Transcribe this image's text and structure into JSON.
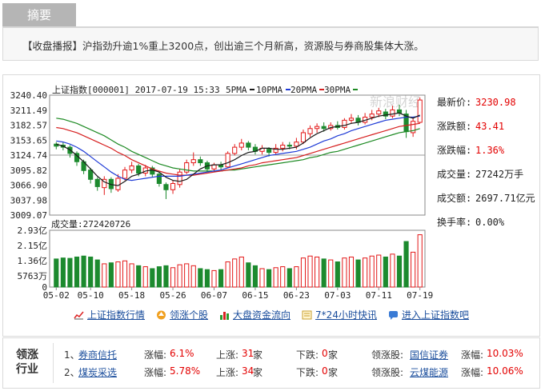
{
  "tab": {
    "label": "摘要"
  },
  "summary": {
    "text": "【收盘播报】沪指劲升逾1%重上3200点，创出逾三个月新高，资源股与券商股集体大涨。"
  },
  "chart_header": {
    "title": "上证指数[000001] 2017-07-19 15:33",
    "ma5": "5PMA",
    "ma10": "10PMA",
    "ma20": "20PMA",
    "ma30": "30PMA"
  },
  "colors": {
    "up": "#e31919",
    "down": "#1c8a2e",
    "ma5": "#1a1a1a",
    "ma10": "#1f3bd6",
    "ma20": "#d61f1f",
    "ma30": "#1d8a23"
  },
  "watermark": "新浪财经",
  "stats": [
    {
      "label": "最新价:",
      "value": "3230.98",
      "color": "red"
    },
    {
      "label": "涨跌额:",
      "value": "43.41",
      "color": "red"
    },
    {
      "label": "涨跌幅:",
      "value": "1.36%",
      "color": "red"
    },
    {
      "label": "成交量:",
      "value": "27242万手",
      "color": "dark"
    },
    {
      "label": "成交额:",
      "value": "2697.71亿元",
      "color": "dark"
    },
    {
      "label": "换手率:",
      "value": "0.00%",
      "color": "dark"
    }
  ],
  "volume_label": "成交量:272420726",
  "links": [
    {
      "label": "上证指数行情",
      "icon": "line-chart-icon"
    },
    {
      "label": "领涨个股",
      "icon": "up-arrow-icon"
    },
    {
      "label": "大盘资金流向",
      "icon": "bar-chart-icon"
    },
    {
      "label": "7*24小时快讯",
      "icon": "news-icon"
    },
    {
      "label": "进入上证指数吧",
      "icon": "forum-icon"
    }
  ],
  "industry": {
    "title": "领涨行业",
    "rows": [
      {
        "rank": "1、",
        "name": "券商信托",
        "chg_label": "涨幅:",
        "chg": "6.1%",
        "up_label": "上涨:",
        "up": "31",
        "up_unit": "家",
        "down_label": "下跌:",
        "down": "0",
        "down_unit": "家",
        "lead_label": "领涨股:",
        "lead": "国信证券",
        "lead_chg_label": "涨幅:",
        "lead_chg": "10.03%"
      },
      {
        "rank": "2、",
        "name": "煤炭采选",
        "chg_label": "涨幅:",
        "chg": "5.78%",
        "up_label": "上涨:",
        "up": "34",
        "up_unit": "家",
        "down_label": "下跌:",
        "down": "0",
        "down_unit": "家",
        "lead_label": "领涨股:",
        "lead": "云煤能源",
        "lead_chg_label": "涨幅:",
        "lead_chg": "10.06%"
      }
    ]
  },
  "chart_data": {
    "type": "candlestick",
    "price_ticks": [
      "3240.40",
      "3211.49",
      "3182.57",
      "3153.65",
      "3124.74",
      "3095.82",
      "3066.90",
      "3037.98",
      "3009.07"
    ],
    "price_range": [
      3009.07,
      3240.4
    ],
    "volume_ticks": [
      "2.93亿",
      "2.15亿",
      "1.36亿",
      "5763万",
      "0"
    ],
    "volume_max": 2.93,
    "x_labels": [
      {
        "label": "05-02",
        "index": 0
      },
      {
        "label": "05-10",
        "index": 5
      },
      {
        "label": "05-18",
        "index": 11
      },
      {
        "label": "05-26",
        "index": 17
      },
      {
        "label": "06-07",
        "index": 23
      },
      {
        "label": "06-15",
        "index": 29
      },
      {
        "label": "06-23",
        "index": 35
      },
      {
        "label": "07-03",
        "index": 41
      },
      {
        "label": "07-11",
        "index": 47
      },
      {
        "label": "07-19",
        "index": 53
      }
    ],
    "candles": [
      {
        "o": 3146,
        "c": 3142,
        "h": 3150,
        "l": 3136,
        "v": 1.45
      },
      {
        "o": 3144,
        "c": 3140,
        "h": 3150,
        "l": 3134,
        "v": 1.5
      },
      {
        "o": 3140,
        "c": 3128,
        "h": 3144,
        "l": 3120,
        "v": 1.48
      },
      {
        "o": 3128,
        "c": 3112,
        "h": 3132,
        "l": 3104,
        "v": 1.55
      },
      {
        "o": 3112,
        "c": 3095,
        "h": 3116,
        "l": 3088,
        "v": 1.6
      },
      {
        "o": 3096,
        "c": 3078,
        "h": 3100,
        "l": 3070,
        "v": 1.55
      },
      {
        "o": 3078,
        "c": 3064,
        "h": 3082,
        "l": 3056,
        "v": 1.4
      },
      {
        "o": 3062,
        "c": 3078,
        "h": 3084,
        "l": 3048,
        "v": 1.2
      },
      {
        "o": 3078,
        "c": 3060,
        "h": 3082,
        "l": 3052,
        "v": 1.25
      },
      {
        "o": 3058,
        "c": 3080,
        "h": 3088,
        "l": 3054,
        "v": 1.3
      },
      {
        "o": 3080,
        "c": 3096,
        "h": 3102,
        "l": 3076,
        "v": 1.35
      },
      {
        "o": 3096,
        "c": 3104,
        "h": 3112,
        "l": 3090,
        "v": 1.2
      },
      {
        "o": 3104,
        "c": 3090,
        "h": 3108,
        "l": 3084,
        "v": 1.1
      },
      {
        "o": 3090,
        "c": 3100,
        "h": 3106,
        "l": 3084,
        "v": 1.05
      },
      {
        "o": 3100,
        "c": 3088,
        "h": 3104,
        "l": 3082,
        "v": 0.95
      },
      {
        "o": 3088,
        "c": 3070,
        "h": 3092,
        "l": 3064,
        "v": 1.05
      },
      {
        "o": 3068,
        "c": 3058,
        "h": 3072,
        "l": 3040,
        "v": 1.1
      },
      {
        "o": 3058,
        "c": 3070,
        "h": 3076,
        "l": 3050,
        "v": 1.0
      },
      {
        "o": 3068,
        "c": 3092,
        "h": 3098,
        "l": 3062,
        "v": 1.15
      },
      {
        "o": 3092,
        "c": 3110,
        "h": 3116,
        "l": 3088,
        "v": 1.2
      },
      {
        "o": 3110,
        "c": 3116,
        "h": 3130,
        "l": 3104,
        "v": 1.1
      },
      {
        "o": 3116,
        "c": 3110,
        "h": 3122,
        "l": 3104,
        "v": 0.95
      },
      {
        "o": 3110,
        "c": 3098,
        "h": 3114,
        "l": 3092,
        "v": 0.9
      },
      {
        "o": 3098,
        "c": 3106,
        "h": 3110,
        "l": 3092,
        "v": 0.85
      },
      {
        "o": 3106,
        "c": 3102,
        "h": 3112,
        "l": 3096,
        "v": 0.9
      },
      {
        "o": 3102,
        "c": 3128,
        "h": 3132,
        "l": 3100,
        "v": 1.3
      },
      {
        "o": 3128,
        "c": 3140,
        "h": 3146,
        "l": 3124,
        "v": 1.45
      },
      {
        "o": 3140,
        "c": 3148,
        "h": 3156,
        "l": 3134,
        "v": 1.55
      },
      {
        "o": 3148,
        "c": 3140,
        "h": 3152,
        "l": 3134,
        "v": 1.25
      },
      {
        "o": 3140,
        "c": 3132,
        "h": 3146,
        "l": 3126,
        "v": 1.1
      },
      {
        "o": 3132,
        "c": 3138,
        "h": 3144,
        "l": 3126,
        "v": 0.95
      },
      {
        "o": 3136,
        "c": 3130,
        "h": 3140,
        "l": 3122,
        "v": 0.9
      },
      {
        "o": 3130,
        "c": 3138,
        "h": 3146,
        "l": 3126,
        "v": 1.0
      },
      {
        "o": 3138,
        "c": 3144,
        "h": 3150,
        "l": 3132,
        "v": 1.05
      },
      {
        "o": 3144,
        "c": 3142,
        "h": 3150,
        "l": 3136,
        "v": 0.95
      },
      {
        "o": 3142,
        "c": 3150,
        "h": 3158,
        "l": 3136,
        "v": 1.05
      },
      {
        "o": 3150,
        "c": 3168,
        "h": 3174,
        "l": 3146,
        "v": 1.5
      },
      {
        "o": 3166,
        "c": 3176,
        "h": 3182,
        "l": 3160,
        "v": 1.6
      },
      {
        "o": 3176,
        "c": 3180,
        "h": 3186,
        "l": 3168,
        "v": 1.55
      },
      {
        "o": 3180,
        "c": 3176,
        "h": 3188,
        "l": 3170,
        "v": 1.45
      },
      {
        "o": 3176,
        "c": 3182,
        "h": 3188,
        "l": 3172,
        "v": 1.4
      },
      {
        "o": 3182,
        "c": 3178,
        "h": 3190,
        "l": 3174,
        "v": 1.3
      },
      {
        "o": 3178,
        "c": 3192,
        "h": 3196,
        "l": 3174,
        "v": 1.5
      },
      {
        "o": 3192,
        "c": 3196,
        "h": 3204,
        "l": 3186,
        "v": 1.55
      },
      {
        "o": 3196,
        "c": 3188,
        "h": 3202,
        "l": 3182,
        "v": 1.4
      },
      {
        "o": 3188,
        "c": 3198,
        "h": 3206,
        "l": 3184,
        "v": 1.5
      },
      {
        "o": 3198,
        "c": 3204,
        "h": 3212,
        "l": 3192,
        "v": 1.6
      },
      {
        "o": 3204,
        "c": 3210,
        "h": 3216,
        "l": 3198,
        "v": 1.65
      },
      {
        "o": 3208,
        "c": 3200,
        "h": 3214,
        "l": 3194,
        "v": 1.55
      },
      {
        "o": 3200,
        "c": 3212,
        "h": 3220,
        "l": 3196,
        "v": 1.7
      },
      {
        "o": 3212,
        "c": 3206,
        "h": 3222,
        "l": 3200,
        "v": 1.6
      },
      {
        "o": 3204,
        "c": 3170,
        "h": 3212,
        "l": 3158,
        "v": 2.35
      },
      {
        "o": 3168,
        "c": 3190,
        "h": 3196,
        "l": 3160,
        "v": 1.8
      },
      {
        "o": 3188,
        "c": 3231,
        "h": 3236,
        "l": 3186,
        "v": 2.7
      }
    ],
    "ma5": [
      3146,
      3142,
      3135,
      3124,
      3112,
      3098,
      3084,
      3073,
      3068,
      3066,
      3074,
      3084,
      3088,
      3094,
      3096,
      3092,
      3082,
      3076,
      3074,
      3078,
      3088,
      3098,
      3104,
      3106,
      3106,
      3110,
      3116,
      3124,
      3130,
      3132,
      3138,
      3138,
      3136,
      3136,
      3138,
      3140,
      3148,
      3158,
      3166,
      3172,
      3178,
      3180,
      3182,
      3186,
      3188,
      3192,
      3196,
      3200,
      3202,
      3204,
      3206,
      3200,
      3196,
      3202
    ],
    "ma10": [
      3152,
      3150,
      3146,
      3140,
      3132,
      3122,
      3112,
      3102,
      3092,
      3084,
      3078,
      3076,
      3078,
      3080,
      3082,
      3084,
      3084,
      3084,
      3084,
      3086,
      3088,
      3090,
      3092,
      3094,
      3096,
      3100,
      3104,
      3108,
      3112,
      3116,
      3120,
      3124,
      3126,
      3128,
      3130,
      3132,
      3136,
      3140,
      3146,
      3152,
      3156,
      3162,
      3166,
      3172,
      3176,
      3180,
      3184,
      3188,
      3192,
      3194,
      3196,
      3198,
      3198,
      3200
    ],
    "ma20": [
      3178,
      3176,
      3172,
      3168,
      3162,
      3156,
      3150,
      3144,
      3138,
      3130,
      3124,
      3116,
      3110,
      3104,
      3098,
      3094,
      3090,
      3088,
      3086,
      3086,
      3086,
      3088,
      3090,
      3092,
      3094,
      3096,
      3098,
      3100,
      3104,
      3106,
      3110,
      3112,
      3114,
      3116,
      3118,
      3120,
      3124,
      3128,
      3132,
      3136,
      3140,
      3144,
      3148,
      3152,
      3156,
      3160,
      3164,
      3168,
      3172,
      3176,
      3180,
      3182,
      3184,
      3186
    ],
    "ma30": [
      3196,
      3194,
      3190,
      3186,
      3180,
      3174,
      3168,
      3162,
      3154,
      3146,
      3140,
      3132,
      3126,
      3120,
      3114,
      3108,
      3104,
      3100,
      3098,
      3096,
      3094,
      3094,
      3094,
      3094,
      3094,
      3096,
      3096,
      3098,
      3100,
      3102,
      3104,
      3106,
      3108,
      3110,
      3112,
      3114,
      3116,
      3120,
      3122,
      3126,
      3130,
      3132,
      3136,
      3140,
      3144,
      3148,
      3152,
      3156,
      3160,
      3164,
      3168,
      3170,
      3172,
      3176
    ]
  }
}
